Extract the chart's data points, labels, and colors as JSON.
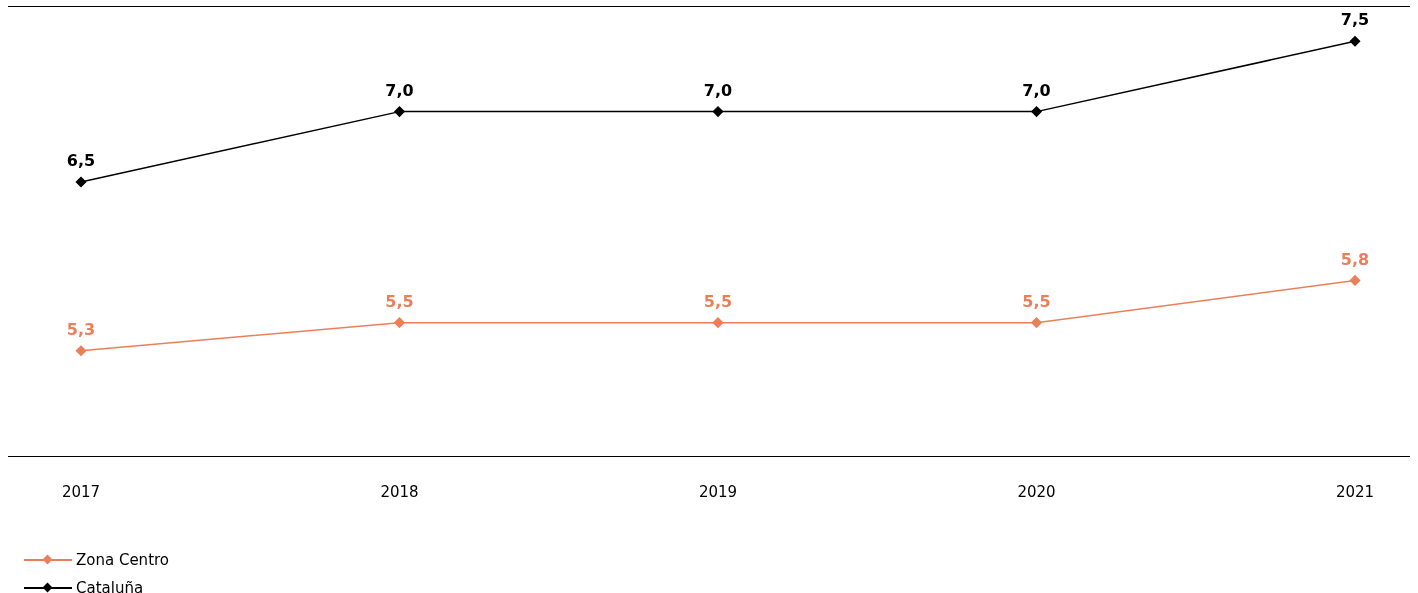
{
  "chart_data": {
    "type": "line",
    "categories": [
      "2017",
      "2018",
      "2019",
      "2020",
      "2021"
    ],
    "series": [
      {
        "name": "Zona Centro",
        "color": "#ec7f5a",
        "values": [
          5.3,
          5.5,
          5.5,
          5.5,
          5.8
        ],
        "value_labels": [
          "5,3",
          "5,5",
          "5,5",
          "5,5",
          "5,8"
        ]
      },
      {
        "name": "Cataluña",
        "color": "#000000",
        "values": [
          6.5,
          7.0,
          7.0,
          7.0,
          7.5
        ],
        "value_labels": [
          "6,5",
          "7,0",
          "7,0",
          "7,0",
          "7,5"
        ]
      }
    ],
    "tick_labels": "x",
    "grid": false,
    "legend": "bottom left",
    "marker": "diamond",
    "line_style": "solid"
  }
}
